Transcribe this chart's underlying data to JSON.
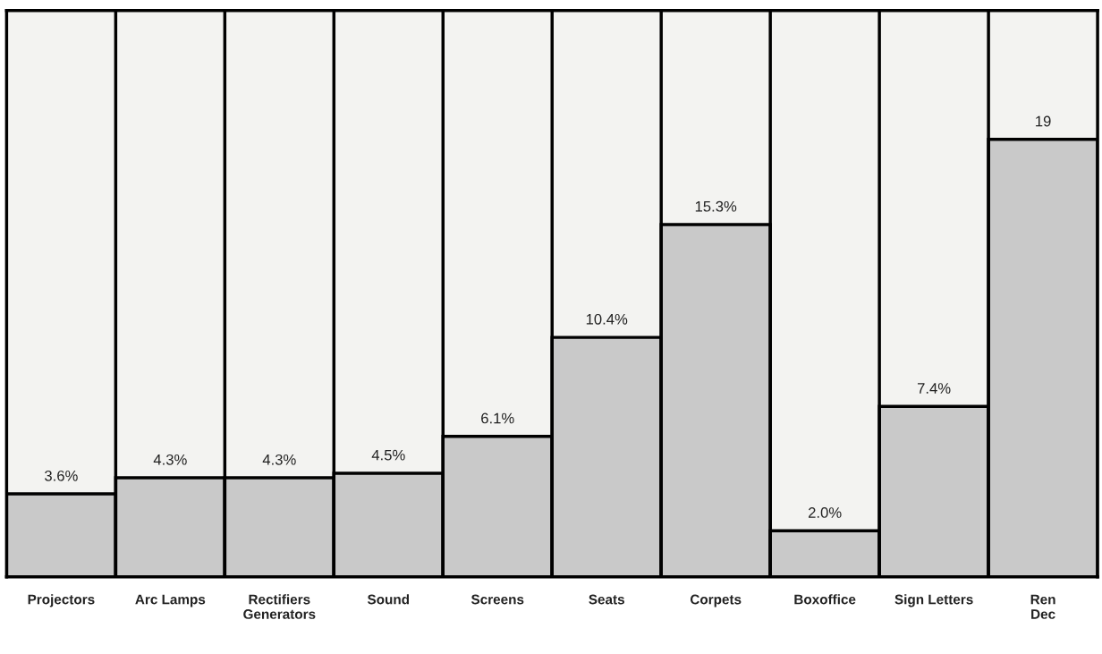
{
  "chart_data": {
    "type": "bar",
    "categories": [
      "Projectors",
      "Arc Lamps",
      "Rectifiers\nGenerators",
      "Sound",
      "Screens",
      "Seats",
      "Corpets",
      "Boxoffice",
      "Sign Letters",
      "Ren\nDec"
    ],
    "values": [
      3.6,
      4.3,
      4.3,
      4.5,
      6.1,
      10.4,
      15.3,
      2.0,
      7.4,
      19
    ],
    "value_labels": [
      "3.6%",
      "4.3%",
      "4.3%",
      "4.5%",
      "6.1%",
      "10.4%",
      "15.3%",
      "2.0%",
      "7.4%",
      "19"
    ],
    "color": "#c9c9c9",
    "ylim": [
      0,
      24.6
    ],
    "grid": false,
    "legend": false
  }
}
